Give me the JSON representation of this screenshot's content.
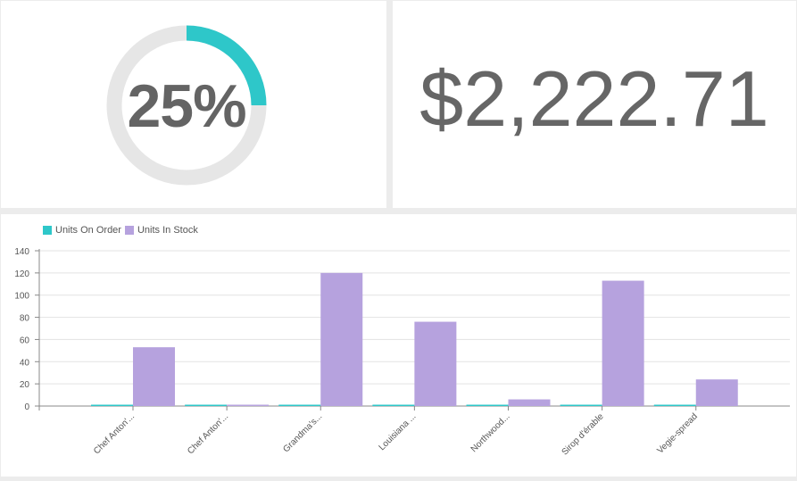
{
  "gauge": {
    "label": "25%",
    "value": 0.25,
    "fill_color": "#2ec7c9",
    "track_color": "#e6e6e6"
  },
  "kpi": {
    "value": "$2,222.71"
  },
  "chart_data": {
    "type": "bar",
    "categories": [
      "Chef Anton'...",
      "Chef Anton'...",
      "Grandma's...",
      "Louisiana ...",
      "Northwood...",
      "Sirop d'érable",
      "Vegie-spread"
    ],
    "series": [
      {
        "name": "Units On Order",
        "color": "#2ec7c9",
        "values": [
          0,
          0,
          0,
          0,
          0,
          0,
          0
        ]
      },
      {
        "name": "Units In Stock",
        "color": "#b6a2de",
        "values": [
          53,
          0,
          120,
          76,
          6,
          113,
          24
        ]
      }
    ],
    "y_ticks": [
      "0",
      "20",
      "40",
      "60",
      "80",
      "100",
      "120",
      "140"
    ],
    "ylim": [
      0,
      140
    ],
    "grid": true,
    "legend_position": "top-left"
  }
}
